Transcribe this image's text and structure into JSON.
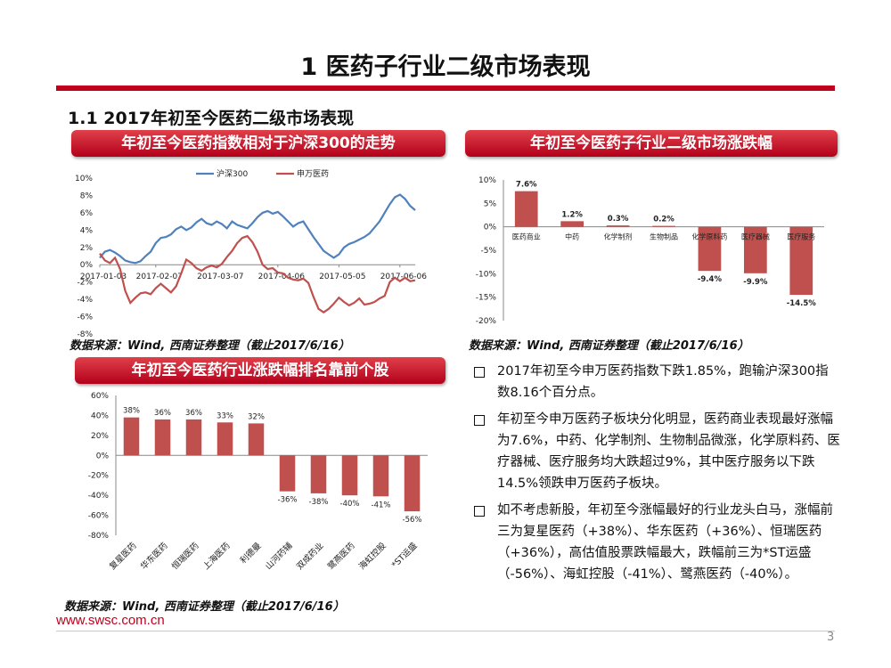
{
  "page": {
    "title": "1 医药子行业二级市场表现",
    "section": "1.1 2017年初至今医药二级市场表现",
    "url": "www.swsc.com.cn",
    "page_number": "3",
    "brand_color": "#c0001d"
  },
  "panels": {
    "line_title": "年初至今医药指数相对于沪深300的走势",
    "sector_title": "年初至今医药子行业二级市场涨跌幅",
    "stock_title": "年初至今医药行业涨跌幅排名靠前个股",
    "source_text": "数据来源：Wind, 西南证券整理（截止2017/6/16）"
  },
  "bullets": [
    "2017年初至今申万医药指数下跌1.85%，跑输沪深300指数8.16个百分点。",
    "年初至今申万医药子板块分化明显，医药商业表现最好涨幅为7.6%，中药、化学制剂、生物制品微涨，化学原料药、医疗器械、医疗服务均大跌超过9%，其中医疗服务以下跌14.5%领跌申万医药子板块。",
    "如不考虑新股，年初至今涨幅最好的行业龙头白马，涨幅前三为复星医药（+38%）、华东医药（+36%）、恒瑞医药（+36%），高估值股票跌幅最大，跌幅前三为*ST运盛（-56%）、海虹控股（-41%）、鹭燕医药（-40%）。"
  ],
  "chart_data": [
    {
      "type": "line",
      "title": "年初至今医药指数相对于沪深300的走势",
      "xlabel": "",
      "ylabel": "",
      "ylim": [
        -8,
        10
      ],
      "y_ticks": [
        "10%",
        "8%",
        "6%",
        "4%",
        "2%",
        "0%",
        "-2%",
        "-4%",
        "-6%",
        "-8%"
      ],
      "x_tick_labels": [
        "2017-01-03",
        "2017-02-07",
        "2017-03-07",
        "2017-04-06",
        "2017-05-05",
        "2017-06-06"
      ],
      "legend_position": "top-center",
      "series": [
        {
          "name": "沪深300",
          "color": "#4f81bd",
          "values": [
            0.8,
            1.5,
            1.7,
            1.4,
            1.0,
            0.5,
            0.3,
            0.2,
            0.4,
            1.0,
            1.5,
            2.5,
            3.1,
            3.2,
            3.5,
            4.1,
            4.4,
            4.0,
            4.3,
            4.9,
            5.3,
            4.8,
            4.6,
            5.0,
            4.7,
            4.2,
            5.0,
            4.6,
            4.4,
            4.2,
            4.8,
            5.5,
            6.0,
            6.2,
            5.9,
            6.1,
            5.6,
            5.0,
            4.4,
            4.8,
            5.0,
            4.1,
            3.2,
            2.4,
            1.6,
            1.2,
            0.8,
            1.2,
            2.0,
            2.4,
            2.6,
            2.9,
            3.2,
            3.6,
            4.3,
            5.0,
            6.0,
            7.0,
            7.8,
            8.1,
            7.6,
            6.8,
            6.3
          ]
        },
        {
          "name": "申万医药",
          "color": "#c0504d",
          "values": [
            1.3,
            0.5,
            0.2,
            0.8,
            -0.5,
            -3.0,
            -4.4,
            -3.8,
            -3.3,
            -3.2,
            -3.4,
            -2.7,
            -2.2,
            -2.7,
            -3.2,
            -2.5,
            -1.0,
            0.6,
            0.2,
            -0.4,
            -0.7,
            -0.3,
            -0.1,
            -0.3,
            0.1,
            0.9,
            1.6,
            2.5,
            3.1,
            3.3,
            2.6,
            1.5,
            0.0,
            -0.5,
            -0.4,
            -0.9,
            -1.0,
            -1.5,
            -1.7,
            -1.8,
            -1.6,
            -2.1,
            -3.7,
            -5.1,
            -5.5,
            -5.1,
            -4.5,
            -3.8,
            -4.3,
            -4.7,
            -4.4,
            -3.9,
            -4.6,
            -4.5,
            -4.3,
            -3.9,
            -3.6,
            -2.0,
            -1.5,
            -1.9,
            -1.5,
            -1.9,
            -1.8
          ]
        }
      ]
    },
    {
      "type": "bar",
      "title": "年初至今医药子行业二级市场涨跌幅",
      "categories": [
        "医药商业",
        "中药",
        "化学制剂",
        "生物制品",
        "化学原料药",
        "医疗器械",
        "医疗服务"
      ],
      "values": [
        7.6,
        1.2,
        0.3,
        0.2,
        -9.4,
        -9.9,
        -14.5
      ],
      "data_labels": [
        "7.6%",
        "1.2%",
        "0.3%",
        "0.2%",
        "-9.4%",
        "-9.9%",
        "-14.5%"
      ],
      "ylim": [
        -20,
        10
      ],
      "y_ticks": [
        "10%",
        "5%",
        "0%",
        "-5%",
        "-10%",
        "-15%",
        "-20%"
      ],
      "bar_color": "#c0504d"
    },
    {
      "type": "bar",
      "title": "年初至今医药行业涨跌幅排名靠前个股",
      "categories": [
        "复星医药",
        "华东医药",
        "恒瑞医药",
        "上海医药",
        "利德曼",
        "山河药辅",
        "双成药业",
        "鹭燕医药",
        "海虹控股",
        "*ST运盛"
      ],
      "values": [
        38,
        36,
        36,
        33,
        32,
        -36,
        -38,
        -40,
        -41,
        -56
      ],
      "data_labels": [
        "38%",
        "36%",
        "36%",
        "33%",
        "32%",
        "-36%",
        "-38%",
        "-40%",
        "-41%",
        "-56%"
      ],
      "ylim": [
        -80,
        60
      ],
      "y_ticks": [
        "60%",
        "40%",
        "20%",
        "0%",
        "-20%",
        "-40%",
        "-60%",
        "-80%"
      ],
      "bar_color": "#c0504d"
    }
  ]
}
